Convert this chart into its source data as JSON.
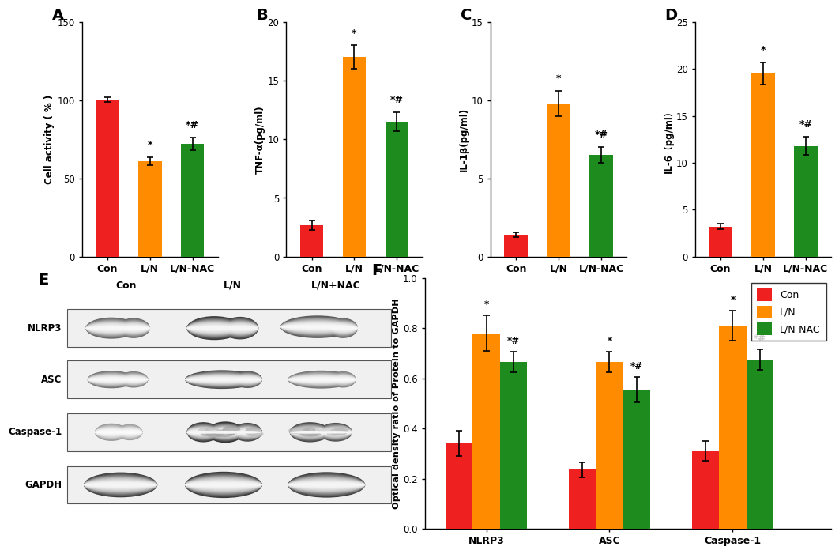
{
  "panel_A": {
    "categories": [
      "Con",
      "L/N",
      "L/N-NAC"
    ],
    "values": [
      100.5,
      61.0,
      72.0
    ],
    "errors": [
      1.5,
      2.5,
      4.0
    ],
    "colors": [
      "#EE2020",
      "#FF8C00",
      "#1E8B1E"
    ],
    "ylabel": "Cell activity ( % )",
    "ylim": [
      0,
      150
    ],
    "yticks": [
      0,
      50,
      100,
      150
    ],
    "sig_labels": [
      "",
      "*",
      "*#"
    ]
  },
  "panel_B": {
    "categories": [
      "Con",
      "L/N",
      "L/N-NAC"
    ],
    "values": [
      2.7,
      17.0,
      11.5
    ],
    "errors": [
      0.4,
      1.0,
      0.8
    ],
    "colors": [
      "#EE2020",
      "#FF8C00",
      "#1E8B1E"
    ],
    "ylabel": "TNF-α(pg/ml)",
    "ylim": [
      0,
      20
    ],
    "yticks": [
      0,
      5,
      10,
      15,
      20
    ],
    "sig_labels": [
      "",
      "*",
      "*#"
    ]
  },
  "panel_C": {
    "categories": [
      "Con",
      "L/N",
      "L/N-NAC"
    ],
    "values": [
      1.4,
      9.8,
      6.5
    ],
    "errors": [
      0.15,
      0.8,
      0.5
    ],
    "colors": [
      "#EE2020",
      "#FF8C00",
      "#1E8B1E"
    ],
    "ylabel": "IL-1β(pg/ml)",
    "ylim": [
      0,
      15
    ],
    "yticks": [
      0,
      5,
      10,
      15
    ],
    "sig_labels": [
      "",
      "*",
      "*#"
    ]
  },
  "panel_D": {
    "categories": [
      "Con",
      "L/N",
      "L/N-NAC"
    ],
    "values": [
      3.2,
      19.5,
      11.8
    ],
    "errors": [
      0.3,
      1.2,
      1.0
    ],
    "colors": [
      "#EE2020",
      "#FF8C00",
      "#1E8B1E"
    ],
    "ylabel": "IL-6（pg/ml）",
    "ylim": [
      0,
      25
    ],
    "yticks": [
      0,
      5,
      10,
      15,
      20,
      25
    ],
    "sig_labels": [
      "",
      "*",
      "*#"
    ]
  },
  "panel_F": {
    "groups": [
      "NLRP3",
      "ASC",
      "Caspase-1"
    ],
    "con_values": [
      0.34,
      0.235,
      0.31
    ],
    "ln_values": [
      0.78,
      0.665,
      0.81
    ],
    "lnnac_values": [
      0.665,
      0.555,
      0.675
    ],
    "con_errors": [
      0.05,
      0.03,
      0.04
    ],
    "ln_errors": [
      0.07,
      0.04,
      0.06
    ],
    "lnnac_errors": [
      0.04,
      0.05,
      0.04
    ],
    "colors": [
      "#EE2020",
      "#FF8C00",
      "#1E8B1E"
    ],
    "ylabel": "Optical density ratio of Protein to GAPDH",
    "ylim": [
      0,
      1.0
    ],
    "yticks": [
      0.0,
      0.2,
      0.4,
      0.6,
      0.8,
      1.0
    ],
    "sig_labels_ln": [
      "*",
      "*",
      "*"
    ],
    "sig_labels_lnnac": [
      "*#",
      "*#",
      "*#"
    ],
    "legend_labels": [
      "Con",
      "L/N",
      "L/N-NAC"
    ]
  },
  "wb_bands": {
    "labels": [
      "NLRP3",
      "ASC",
      "Caspase-1",
      "GAPDH"
    ],
    "col_labels": [
      "Con",
      "L/N",
      "L/N+NAC"
    ]
  }
}
